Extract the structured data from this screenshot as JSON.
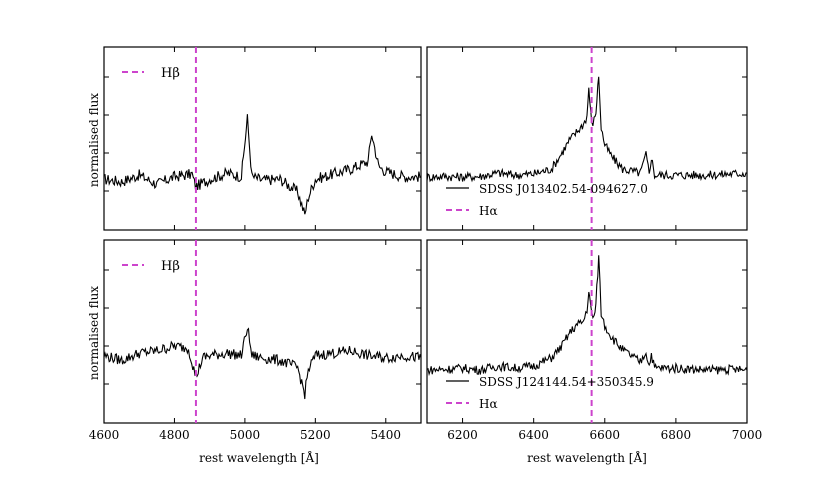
{
  "chart_data": [
    {
      "type": "line",
      "panel": "top-left",
      "xlim": [
        4600,
        5500
      ],
      "ylabel": "normalised flux",
      "series": [
        {
          "name": "",
          "x": [
            4600,
            4650,
            4700,
            4750,
            4800,
            4850,
            4860,
            4900,
            4950,
            4990,
            5007,
            5020,
            5050,
            5100,
            5150,
            5170,
            5180,
            5200,
            5250,
            5300,
            5350,
            5360,
            5380,
            5400,
            5450,
            5500
          ],
          "y": [
            0.0,
            -0.05,
            0.08,
            -0.1,
            0.05,
            0.1,
            -0.15,
            0.0,
            0.12,
            0.05,
            1.2,
            0.05,
            -0.02,
            0.0,
            -0.25,
            -0.7,
            -0.35,
            0.0,
            0.1,
            0.2,
            0.35,
            0.9,
            0.25,
            0.15,
            0.05,
            0.05
          ]
        }
      ],
      "reference_lines": [
        {
          "name": "Hβ",
          "x": 4861,
          "color": "#cc44cc",
          "style": "dashed"
        }
      ],
      "legend": {
        "location": "top-left",
        "entries": [
          "Hβ"
        ]
      }
    },
    {
      "type": "line",
      "panel": "top-right",
      "xlim": [
        6100,
        7000
      ],
      "series": [
        {
          "name": "SDSS J013402.54-094627.0",
          "x": [
            6100,
            6150,
            6200,
            6250,
            6300,
            6350,
            6400,
            6450,
            6480,
            6500,
            6520,
            6540,
            6550,
            6555,
            6563,
            6570,
            6575,
            6583,
            6590,
            6600,
            6620,
            6650,
            6700,
            6716,
            6725,
            6731,
            6740,
            6800,
            6850,
            6900,
            6950,
            7000
          ],
          "y": [
            0.0,
            0.02,
            0.0,
            0.02,
            0.1,
            0.05,
            0.08,
            0.2,
            0.6,
            0.9,
            1.1,
            1.3,
            1.5,
            2.2,
            1.3,
            1.4,
            1.6,
            2.5,
            1.2,
            0.8,
            0.5,
            0.2,
            0.1,
            0.55,
            0.1,
            0.5,
            0.05,
            0.05,
            0.05,
            0.05,
            0.08,
            0.1
          ]
        }
      ],
      "reference_lines": [
        {
          "name": "Hα",
          "x": 6563,
          "color": "#cc44cc",
          "style": "dashed"
        }
      ],
      "legend": {
        "location": "bottom-left",
        "entries": [
          "SDSS J013402.54-094627.0",
          "Hα"
        ]
      }
    },
    {
      "type": "line",
      "panel": "bottom-left",
      "xlim": [
        4600,
        5500
      ],
      "xlabel": "rest wavelength [Å]",
      "ylabel": "normalised flux",
      "x_ticks": [
        4600,
        4800,
        5000,
        5200,
        5400
      ],
      "series": [
        {
          "name": "",
          "x": [
            4600,
            4650,
            4700,
            4750,
            4800,
            4840,
            4861,
            4880,
            4900,
            4950,
            4990,
            5007,
            5020,
            5050,
            5100,
            5150,
            5170,
            5180,
            5200,
            5250,
            5300,
            5350,
            5400,
            5450,
            5500
          ],
          "y": [
            0.1,
            0.0,
            0.15,
            0.2,
            0.3,
            0.25,
            -0.35,
            0.05,
            0.1,
            0.15,
            0.1,
            0.7,
            0.1,
            0.05,
            0.0,
            -0.15,
            -0.7,
            -0.2,
            0.1,
            0.15,
            0.2,
            0.1,
            0.05,
            0.1,
            0.05
          ]
        }
      ],
      "reference_lines": [
        {
          "name": "Hβ",
          "x": 4861,
          "color": "#cc44cc",
          "style": "dashed"
        }
      ],
      "legend": {
        "location": "top-left",
        "entries": [
          "Hβ"
        ]
      }
    },
    {
      "type": "line",
      "panel": "bottom-right",
      "xlim": [
        6100,
        7000
      ],
      "xlabel": "rest wavelength [Å]",
      "x_ticks": [
        6200,
        6400,
        6600,
        6800,
        7000
      ],
      "series": [
        {
          "name": "SDSS J124144.54+350345.9",
          "x": [
            6100,
            6150,
            6200,
            6250,
            6300,
            6350,
            6400,
            6450,
            6480,
            6500,
            6520,
            6540,
            6550,
            6555,
            6563,
            6570,
            6575,
            6583,
            6590,
            6600,
            6620,
            6650,
            6700,
            6716,
            6725,
            6731,
            6740,
            6800,
            6850,
            6900,
            6950,
            7000
          ],
          "y": [
            0.0,
            0.02,
            0.05,
            0.0,
            0.1,
            0.05,
            0.1,
            0.3,
            0.6,
            0.9,
            1.1,
            1.2,
            1.5,
            1.9,
            1.4,
            1.3,
            1.6,
            2.8,
            1.4,
            1.1,
            0.8,
            0.5,
            0.2,
            0.45,
            0.1,
            0.4,
            0.05,
            0.05,
            0.02,
            0.0,
            0.02,
            0.0
          ]
        }
      ],
      "reference_lines": [
        {
          "name": "Hα",
          "x": 6563,
          "color": "#cc44cc",
          "style": "dashed"
        }
      ],
      "legend": {
        "location": "bottom-left",
        "entries": [
          "SDSS J124144.54+350345.9",
          "Hα"
        ]
      }
    }
  ]
}
